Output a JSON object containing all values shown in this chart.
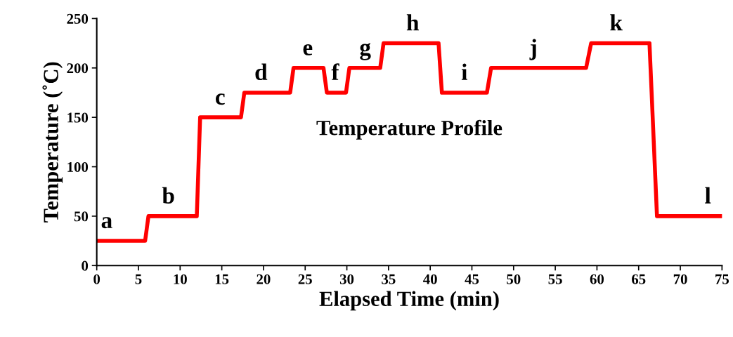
{
  "chart_data": {
    "type": "line",
    "title": "Temperature Profile",
    "xlabel": "Elapsed Time (min)",
    "ylabel": "Temperature (˚C)",
    "x": [
      0,
      5.8,
      6.2,
      12.0,
      12.4,
      17.3,
      17.7,
      23.2,
      23.6,
      27.2,
      27.6,
      29.9,
      30.3,
      34.0,
      34.4,
      41.0,
      41.4,
      46.8,
      47.3,
      58.7,
      59.3,
      66.3,
      67.2,
      75
    ],
    "series": [
      {
        "color": "#ff0000",
        "values": [
          25,
          25,
          50,
          50,
          150,
          150,
          175,
          175,
          200,
          200,
          175,
          175,
          200,
          200,
          225,
          225,
          175,
          175,
          200,
          200,
          225,
          225,
          50,
          50
        ]
      }
    ],
    "xlim": [
      0,
      75
    ],
    "xticks": [
      0,
      5,
      10,
      15,
      20,
      25,
      30,
      35,
      40,
      45,
      50,
      55,
      60,
      65,
      70,
      75
    ],
    "ylim": [
      0,
      250
    ],
    "yticks": [
      0,
      50,
      100,
      150,
      200,
      250
    ],
    "grid": false,
    "marker": "none",
    "line_style": "solid",
    "legend": false,
    "annotations": [
      {
        "text": "a",
        "x": 1.2,
        "y": 25
      },
      {
        "text": "b",
        "x": 8.6,
        "y": 50
      },
      {
        "text": "c",
        "x": 14.8,
        "y": 150
      },
      {
        "text": "d",
        "x": 19.7,
        "y": 175
      },
      {
        "text": "e",
        "x": 25.3,
        "y": 200
      },
      {
        "text": "f",
        "x": 28.6,
        "y": 175
      },
      {
        "text": "g",
        "x": 32.2,
        "y": 200
      },
      {
        "text": "h",
        "x": 37.9,
        "y": 225
      },
      {
        "text": "i",
        "x": 44.1,
        "y": 175
      },
      {
        "text": "j",
        "x": 52.4,
        "y": 200
      },
      {
        "text": "k",
        "x": 62.3,
        "y": 225
      },
      {
        "text": "l",
        "x": 73.3,
        "y": 50
      }
    ]
  }
}
